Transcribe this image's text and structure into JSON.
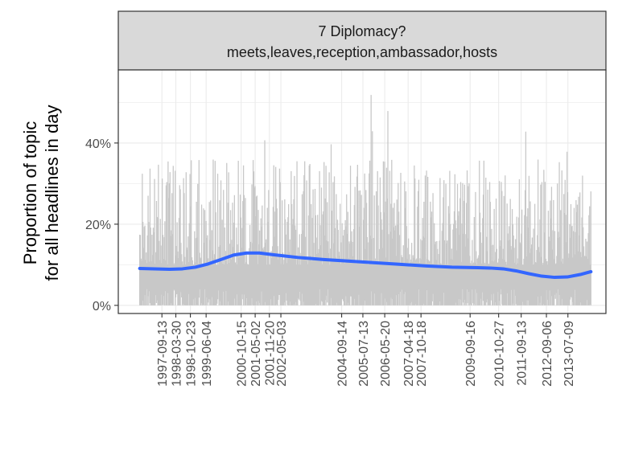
{
  "chart_data": {
    "type": "area",
    "facet": {
      "title_line1": "7 Diplomacy?",
      "title_line2": "meets,leaves,reception,ambassador,hosts"
    },
    "ylabel_line1": "Proportion of topic",
    "ylabel_line2": "for all headlines in day",
    "xlabel": "",
    "x_range": [
      "1996-01-01",
      "2015-01-01"
    ],
    "ylim": [
      -0.02,
      0.58
    ],
    "y_ticks": [
      {
        "value": 0.0,
        "label": "0%"
      },
      {
        "value": 0.2,
        "label": "20%"
      },
      {
        "value": 0.4,
        "label": "40%"
      }
    ],
    "x_ticks": [
      "1997-09-13",
      "1998-03-30",
      "1998-10-23",
      "1999-06-04",
      "2000-10-15",
      "2001-05-02",
      "2001-11-20",
      "2002-05-03",
      "2004-09-14",
      "2005-07-13",
      "2006-05-20",
      "2007-04-18",
      "2007-10-18",
      "2009-09-16",
      "2010-10-27",
      "2011-09-13",
      "2012-09-06",
      "2013-07-09"
    ],
    "grid": true,
    "colors": {
      "daily_proportion": "#c8c8c8",
      "smooth": "#3366ff",
      "strip_fill": "#d9d9d9",
      "panel_border": "#333333",
      "grid": "#ebebeb"
    },
    "series": [
      {
        "kind": "daily",
        "x_range": [
          "1996-11-01",
          "2014-06-01"
        ],
        "typical_peak_band": [
          0.1,
          0.36
        ],
        "max_value": 0.56
      },
      {
        "kind": "smooth",
        "x": [
          "1996-11-01",
          "1997-06-01",
          "1998-01-01",
          "1998-07-01",
          "1999-01-01",
          "1999-07-01",
          "2000-01-01",
          "2000-07-01",
          "2001-01-01",
          "2001-07-01",
          "2002-01-01",
          "2003-01-01",
          "2004-01-01",
          "2005-01-01",
          "2006-01-01",
          "2007-01-01",
          "2008-01-01",
          "2009-01-01",
          "2010-01-01",
          "2010-07-01",
          "2011-01-01",
          "2011-07-01",
          "2012-01-01",
          "2012-07-01",
          "2013-01-01",
          "2013-07-01",
          "2014-01-01",
          "2014-06-01"
        ],
        "values": [
          0.091,
          0.09,
          0.089,
          0.09,
          0.094,
          0.102,
          0.113,
          0.124,
          0.129,
          0.129,
          0.125,
          0.118,
          0.113,
          0.109,
          0.105,
          0.101,
          0.097,
          0.094,
          0.093,
          0.092,
          0.09,
          0.085,
          0.078,
          0.072,
          0.069,
          0.07,
          0.076,
          0.083
        ]
      }
    ]
  }
}
